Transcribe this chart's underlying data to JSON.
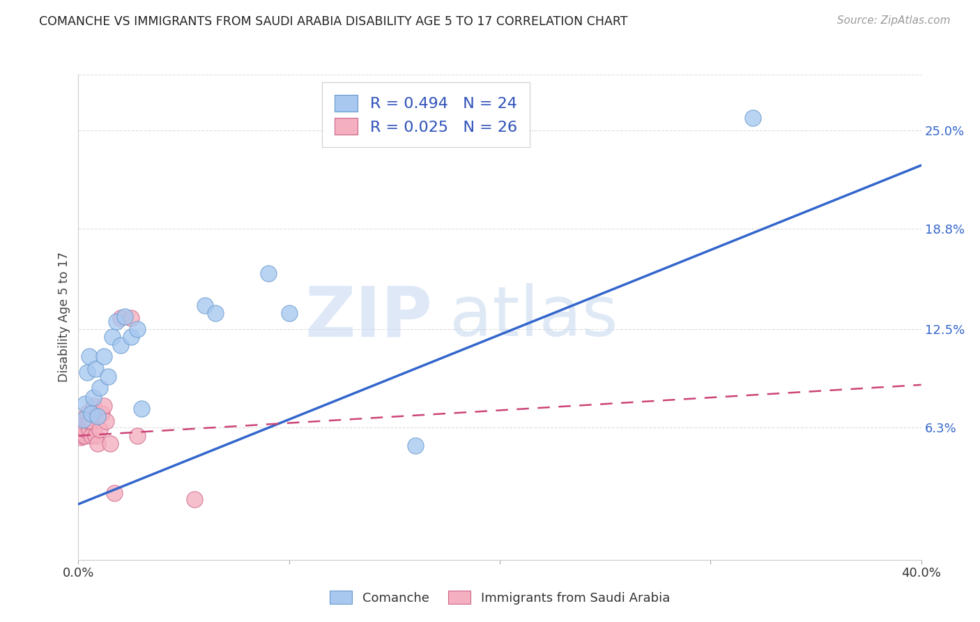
{
  "title": "COMANCHE VS IMMIGRANTS FROM SAUDI ARABIA DISABILITY AGE 5 TO 17 CORRELATION CHART",
  "source": "Source: ZipAtlas.com",
  "ylabel": "Disability Age 5 to 17",
  "xlim": [
    0.0,
    0.4
  ],
  "ylim": [
    -0.02,
    0.285
  ],
  "ytick_labels": [
    "6.3%",
    "12.5%",
    "18.8%",
    "25.0%"
  ],
  "ytick_values": [
    0.063,
    0.125,
    0.188,
    0.25
  ],
  "xtick_values": [
    0.0,
    0.1,
    0.2,
    0.3,
    0.4
  ],
  "watermark_zip": "ZIP",
  "watermark_atlas": "atlas",
  "comanche_color": "#a8c8f0",
  "comanche_edge_color": "#6699cc",
  "saudi_color": "#f4afc0",
  "saudi_edge_color": "#cc6688",
  "comanche_R": 0.494,
  "comanche_N": 24,
  "saudi_R": 0.025,
  "saudi_N": 26,
  "legend_text_color": "#3355bb",
  "comanche_points_x": [
    0.002,
    0.003,
    0.004,
    0.005,
    0.006,
    0.007,
    0.008,
    0.009,
    0.01,
    0.012,
    0.014,
    0.016,
    0.018,
    0.02,
    0.022,
    0.025,
    0.028,
    0.03,
    0.06,
    0.065,
    0.09,
    0.1,
    0.16,
    0.32
  ],
  "comanche_points_y": [
    0.068,
    0.078,
    0.098,
    0.108,
    0.072,
    0.082,
    0.1,
    0.07,
    0.088,
    0.108,
    0.095,
    0.12,
    0.13,
    0.115,
    0.133,
    0.12,
    0.125,
    0.075,
    0.14,
    0.135,
    0.16,
    0.135,
    0.052,
    0.258
  ],
  "saudi_points_x": [
    0.0,
    0.001,
    0.001,
    0.002,
    0.002,
    0.003,
    0.003,
    0.004,
    0.004,
    0.005,
    0.005,
    0.006,
    0.006,
    0.007,
    0.008,
    0.009,
    0.01,
    0.011,
    0.012,
    0.013,
    0.015,
    0.017,
    0.02,
    0.025,
    0.028,
    0.055
  ],
  "saudi_points_y": [
    0.062,
    0.057,
    0.062,
    0.058,
    0.067,
    0.058,
    0.062,
    0.067,
    0.072,
    0.062,
    0.067,
    0.058,
    0.067,
    0.077,
    0.058,
    0.053,
    0.062,
    0.072,
    0.077,
    0.067,
    0.053,
    0.022,
    0.132,
    0.132,
    0.058,
    0.018
  ],
  "blue_line_x": [
    0.0,
    0.4
  ],
  "blue_line_y": [
    0.015,
    0.228
  ],
  "pink_line_x": [
    0.0,
    0.4
  ],
  "pink_line_y": [
    0.058,
    0.09
  ],
  "background_color": "#ffffff",
  "grid_color": "#dddddd"
}
